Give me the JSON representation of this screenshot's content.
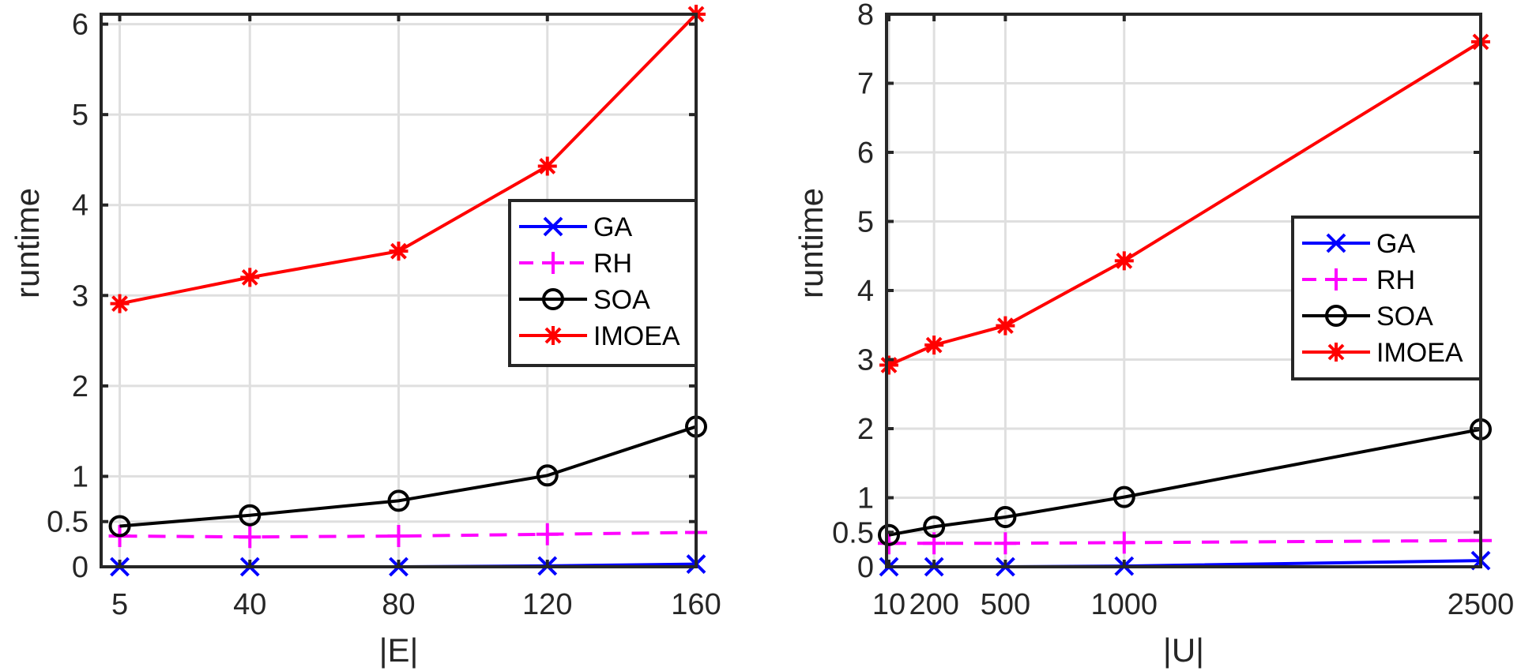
{
  "chart_data": [
    {
      "type": "line",
      "title": "",
      "xlabel": "|E|",
      "ylabel": "runtime",
      "x": [
        5,
        40,
        80,
        120,
        160
      ],
      "xticks": [
        5,
        40,
        80,
        120,
        160
      ],
      "xlim": [
        0,
        160
      ],
      "ylim": [
        0,
        6.11
      ],
      "yticks": [
        0,
        0.5,
        1,
        2,
        3,
        4,
        5,
        6
      ],
      "ytick_labels": [
        "0",
        "0.5",
        "1",
        "2",
        "3",
        "4",
        "5",
        "6"
      ],
      "grid": true,
      "legend_position": "center-right",
      "series": [
        {
          "name": "GA",
          "color": "#0000ff",
          "marker": "x",
          "linestyle": "solid",
          "values": [
            0.0,
            0.0,
            0.0,
            0.01,
            0.03
          ]
        },
        {
          "name": "RH",
          "color": "#ff00ff",
          "marker": "+",
          "linestyle": "dashed",
          "values": [
            0.34,
            0.33,
            0.34,
            0.36,
            0.38
          ]
        },
        {
          "name": "SOA",
          "color": "#000000",
          "marker": "o",
          "linestyle": "solid",
          "values": [
            0.45,
            0.57,
            0.73,
            1.01,
            1.55
          ]
        },
        {
          "name": "IMOEA",
          "color": "#ff0000",
          "marker": "*",
          "linestyle": "solid",
          "values": [
            2.91,
            3.2,
            3.49,
            4.43,
            6.11
          ]
        }
      ]
    },
    {
      "type": "line",
      "title": "",
      "xlabel": "|U|",
      "ylabel": "runtime",
      "x": [
        10,
        200,
        500,
        1000,
        2500
      ],
      "xticks": [
        10,
        200,
        500,
        1000,
        2500
      ],
      "xtick_labels": [
        "10",
        "200",
        "500",
        "1000",
        "2500"
      ],
      "xlim": [
        0,
        2500
      ],
      "ylim": [
        0,
        8
      ],
      "yticks": [
        0,
        0.5,
        1,
        2,
        3,
        4,
        5,
        6,
        7,
        8
      ],
      "ytick_labels": [
        "0",
        "0.5",
        "1",
        "2",
        "3",
        "4",
        "5",
        "6",
        "7",
        "8"
      ],
      "grid": true,
      "legend_position": "center-right",
      "series": [
        {
          "name": "GA",
          "color": "#0000ff",
          "marker": "x",
          "linestyle": "solid",
          "values": [
            0.0,
            0.0,
            0.0,
            0.01,
            0.09
          ]
        },
        {
          "name": "RH",
          "color": "#ff00ff",
          "marker": "+",
          "linestyle": "dashed",
          "values": [
            0.34,
            0.34,
            0.34,
            0.35,
            0.38
          ]
        },
        {
          "name": "SOA",
          "color": "#000000",
          "marker": "o",
          "linestyle": "solid",
          "values": [
            0.46,
            0.58,
            0.72,
            1.01,
            1.99
          ]
        },
        {
          "name": "IMOEA",
          "color": "#ff0000",
          "marker": "*",
          "linestyle": "solid",
          "values": [
            2.92,
            3.21,
            3.49,
            4.43,
            7.6
          ]
        }
      ]
    }
  ]
}
